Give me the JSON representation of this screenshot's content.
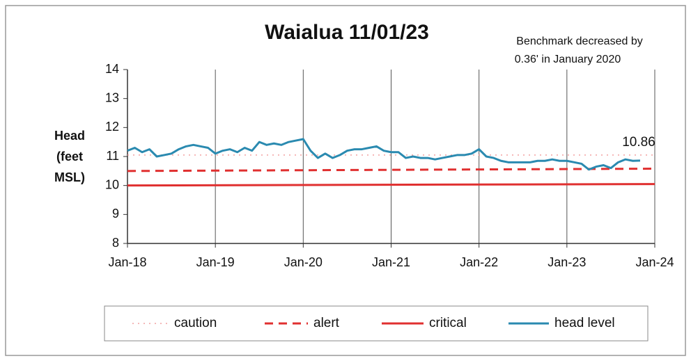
{
  "chart_data": {
    "type": "line",
    "title": "Waialua 11/01/23",
    "annotation": [
      "Benchmark decreased by",
      "0.36' in January 2020"
    ],
    "ylabel": [
      "Head",
      "(feet",
      "MSL)"
    ],
    "xlim": [
      "Jan-18",
      "Jan-24"
    ],
    "xticks": [
      "Jan-18",
      "Jan-19",
      "Jan-20",
      "Jan-21",
      "Jan-22",
      "Jan-23",
      "Jan-24"
    ],
    "ylim": [
      8,
      14
    ],
    "yticks": [
      8,
      9,
      10,
      11,
      12,
      13,
      14
    ],
    "grid": "x",
    "legend": "bottom",
    "data_labels": "last",
    "series": [
      {
        "name": "caution",
        "color": "#f2a0a0",
        "style": "dotted",
        "x": [
          "Jan-18",
          "Jan-24"
        ],
        "values": [
          11.05,
          11.05
        ]
      },
      {
        "name": "alert",
        "color": "#e03030",
        "style": "dashed",
        "x": [
          "Jan-18",
          "Jan-24"
        ],
        "values": [
          10.5,
          10.58
        ]
      },
      {
        "name": "critical",
        "color": "#e03030",
        "style": "solid",
        "x": [
          "Jan-18",
          "Jan-24"
        ],
        "values": [
          10.0,
          10.05
        ]
      },
      {
        "name": "head level",
        "color": "#2a8ab0",
        "style": "solid",
        "x": [
          "Jan-18",
          "Feb-18",
          "Mar-18",
          "Apr-18",
          "May-18",
          "Jun-18",
          "Jul-18",
          "Aug-18",
          "Sep-18",
          "Oct-18",
          "Nov-18",
          "Dec-18",
          "Jan-19",
          "Feb-19",
          "Mar-19",
          "Apr-19",
          "May-19",
          "Jun-19",
          "Jul-19",
          "Aug-19",
          "Sep-19",
          "Oct-19",
          "Nov-19",
          "Dec-19",
          "Jan-20",
          "Feb-20",
          "Mar-20",
          "Apr-20",
          "May-20",
          "Jun-20",
          "Jul-20",
          "Aug-20",
          "Sep-20",
          "Oct-20",
          "Nov-20",
          "Dec-20",
          "Jan-21",
          "Feb-21",
          "Mar-21",
          "Apr-21",
          "May-21",
          "Jun-21",
          "Jul-21",
          "Aug-21",
          "Sep-21",
          "Oct-21",
          "Nov-21",
          "Dec-21",
          "Jan-22",
          "Feb-22",
          "Mar-22",
          "Apr-22",
          "May-22",
          "Jun-22",
          "Jul-22",
          "Aug-22",
          "Sep-22",
          "Oct-22",
          "Nov-22",
          "Dec-22",
          "Jan-23",
          "Feb-23",
          "Mar-23",
          "Apr-23",
          "May-23",
          "Jun-23",
          "Jul-23",
          "Aug-23",
          "Sep-23",
          "Oct-23",
          "Nov-23"
        ],
        "values": [
          11.2,
          11.3,
          11.15,
          11.25,
          11.0,
          11.05,
          11.1,
          11.25,
          11.35,
          11.4,
          11.35,
          11.3,
          11.1,
          11.2,
          11.25,
          11.15,
          11.3,
          11.2,
          11.5,
          11.4,
          11.45,
          11.4,
          11.5,
          11.55,
          11.6,
          11.2,
          10.95,
          11.1,
          10.95,
          11.05,
          11.2,
          11.25,
          11.25,
          11.3,
          11.35,
          11.2,
          11.15,
          11.15,
          10.95,
          11.0,
          10.95,
          10.95,
          10.9,
          10.95,
          11.0,
          11.05,
          11.05,
          11.1,
          11.25,
          11.0,
          10.95,
          10.85,
          10.8,
          10.8,
          10.8,
          10.8,
          10.85,
          10.85,
          10.9,
          10.85,
          10.85,
          10.8,
          10.75,
          10.55,
          10.65,
          10.7,
          10.6,
          10.8,
          10.9,
          10.85,
          10.86
        ]
      }
    ]
  }
}
